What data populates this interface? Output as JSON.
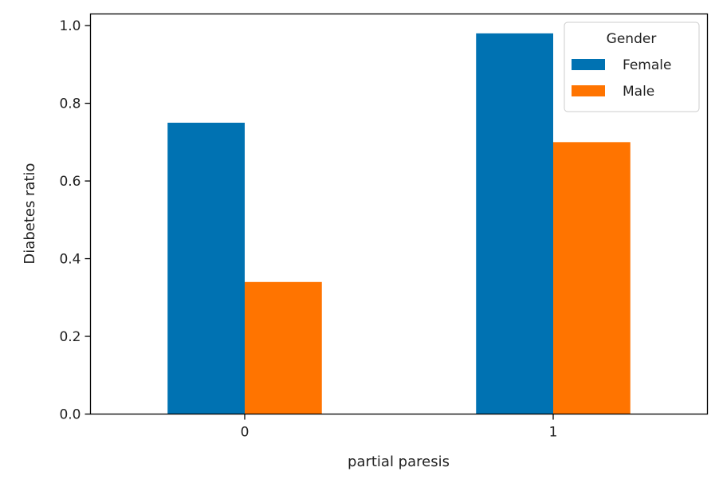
{
  "chart_data": {
    "type": "bar",
    "title": "",
    "xlabel": "partial paresis",
    "ylabel": "Diabetes ratio",
    "categories": [
      "0",
      "1"
    ],
    "ylim": [
      0,
      1.03
    ],
    "yticks": [
      "0.0",
      "0.2",
      "0.4",
      "0.6",
      "0.8",
      "1.0"
    ],
    "grid": false,
    "legend": {
      "title": "Gender",
      "position": "top-right"
    },
    "series": [
      {
        "name": "Female",
        "color": "#0072b2",
        "values": [
          0.75,
          0.98
        ]
      },
      {
        "name": "Male",
        "color": "#ff7400",
        "values": [
          0.34,
          0.7
        ]
      }
    ]
  }
}
